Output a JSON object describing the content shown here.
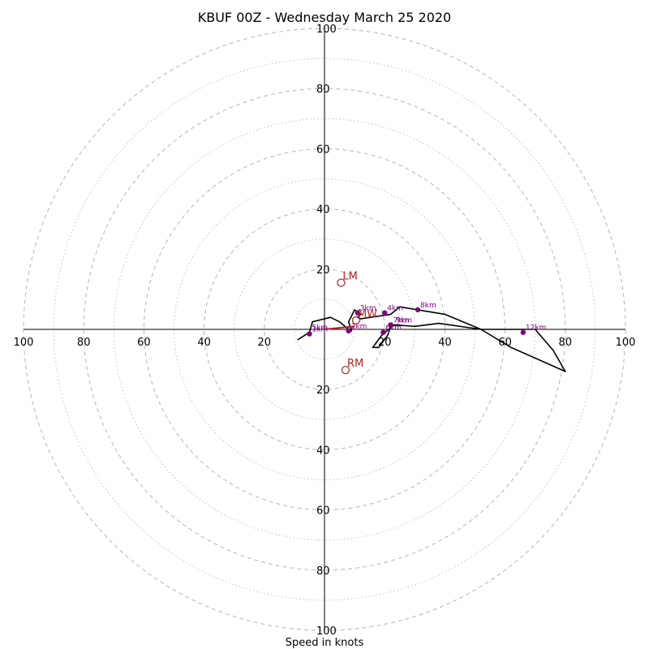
{
  "chart_data": {
    "type": "hodograph",
    "title": "KBUF 00Z - Wednesday March 25 2020",
    "xlabel": "Speed in knots",
    "units": "knots",
    "max_speed": 100,
    "ring_major_step": 20,
    "ring_minor_step": 10,
    "grid": true,
    "x_ticks": [
      "100",
      "80",
      "60",
      "40",
      "20",
      "20",
      "40",
      "60",
      "80",
      "100"
    ],
    "x_tick_values": [
      -100,
      -80,
      -60,
      -40,
      -20,
      20,
      40,
      60,
      80,
      100
    ],
    "y_ticks": [
      "100",
      "80",
      "60",
      "40",
      "20",
      "20",
      "40",
      "60",
      "80",
      "100"
    ],
    "y_tick_values": [
      100,
      80,
      60,
      40,
      20,
      -20,
      -40,
      -60,
      -80,
      -100
    ],
    "hodograph_trace": [
      [
        -9,
        -3.5
      ],
      [
        -5,
        -1
      ],
      [
        -4,
        2.5
      ],
      [
        2,
        4
      ],
      [
        5,
        2.5
      ],
      [
        8,
        0
      ],
      [
        9,
        -0.5
      ],
      [
        8,
        2.5
      ],
      [
        10,
        6.5
      ],
      [
        12,
        5
      ],
      [
        11,
        4
      ],
      [
        12,
        3.5
      ],
      [
        22,
        5
      ],
      [
        25,
        7.5
      ],
      [
        31,
        6.5
      ],
      [
        40,
        5
      ],
      [
        52,
        0
      ],
      [
        60,
        0
      ],
      [
        65,
        0
      ],
      [
        70,
        0
      ],
      [
        76,
        -7
      ],
      [
        80,
        -14
      ],
      [
        62,
        -6
      ],
      [
        52,
        0
      ],
      [
        38,
        2
      ],
      [
        30,
        1
      ],
      [
        23,
        1.5
      ],
      [
        19,
        -2
      ],
      [
        16,
        -6
      ],
      [
        18,
        -6
      ],
      [
        21,
        -2
      ],
      [
        22,
        1
      ],
      [
        24,
        1.5
      ],
      [
        25,
        1.5
      ]
    ],
    "height_labels": [
      {
        "label": "1km",
        "u": -5,
        "v": -1.5,
        "marker": true
      },
      {
        "label": "2km",
        "u": 8,
        "v": -0.5,
        "marker": true
      },
      {
        "label": "3km",
        "u": 11,
        "v": 5.5,
        "marker": true
      },
      {
        "label": "4km",
        "u": 20,
        "v": 5.5,
        "marker": true
      },
      {
        "label": "5km",
        "u": -5,
        "v": -1,
        "marker": false
      },
      {
        "label": "6km",
        "u": 19.5,
        "v": -1,
        "marker": true
      },
      {
        "label": "7km",
        "u": 22,
        "v": 1.5,
        "marker": true
      },
      {
        "label": "8km",
        "u": 31,
        "v": 6.5,
        "marker": true
      },
      {
        "label": "9km",
        "u": 23,
        "v": 1.5,
        "marker": false
      },
      {
        "label": "12km",
        "u": 66,
        "v": -1,
        "marker": true
      }
    ],
    "storm_motions": [
      {
        "label": "LM",
        "u": 5.5,
        "v": 15.5
      },
      {
        "label": "MW",
        "u": 10.5,
        "v": 3
      },
      {
        "label": "RM",
        "u": 7,
        "v": -13.5
      }
    ],
    "mean_shear_segment": [
      [
        0,
        0
      ],
      [
        5,
        0.5
      ],
      [
        10,
        1
      ]
    ],
    "colors": {
      "grid": "#bbbbbb",
      "trace": "#000000",
      "height_marker": "#800080",
      "storm_motion": "#b22222"
    }
  }
}
